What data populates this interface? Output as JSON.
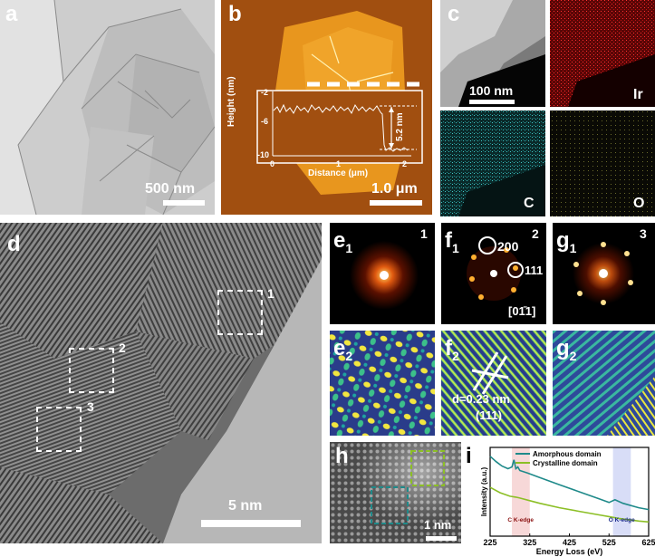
{
  "panels": {
    "a": {
      "label": "a",
      "scalebar": "500 nm"
    },
    "b": {
      "label": "b",
      "scalebar": "1.0 μm",
      "inset": {
        "xlabel": "Distance (μm)",
        "ylabel": "Height (nm)",
        "yticks": [
          "-2",
          "-6",
          "-10"
        ],
        "xticks": [
          "0",
          "1",
          "2"
        ],
        "annotation": "5.2 nm"
      }
    },
    "c": {
      "label": "c",
      "scalebar": "100 nm",
      "maps": [
        "Ir",
        "C",
        "O"
      ]
    },
    "d": {
      "label": "d",
      "scalebar": "5 nm",
      "regions": [
        "1",
        "2",
        "3"
      ]
    },
    "e1": {
      "label": "e",
      "sub": "1",
      "region": "1"
    },
    "f1": {
      "label": "f",
      "sub": "1",
      "region": "2",
      "spot1": "200",
      "spot2": "111",
      "zone": "[01̄1]"
    },
    "g1": {
      "label": "g",
      "sub": "1",
      "region": "3"
    },
    "e2": {
      "label": "e",
      "sub": "2"
    },
    "f2": {
      "label": "f",
      "sub": "2",
      "spacing": "d=0.23 nm",
      "plane": "(111)"
    },
    "g2": {
      "label": "g",
      "sub": "2"
    },
    "h": {
      "label": "h",
      "scalebar": "1 nm"
    },
    "i": {
      "label": "i"
    }
  },
  "chart_data": {
    "type": "line",
    "xlabel": "Energy Loss (eV)",
    "ylabel": "Intensity (a.u.)",
    "xlim": [
      225,
      625
    ],
    "xticks": [
      225,
      325,
      425,
      525,
      625
    ],
    "legend_position": "top",
    "annotations": [
      "C K-edge",
      "O K-edge"
    ],
    "series": [
      {
        "name": "Amorphous domain",
        "color": "#1f8a8a",
        "x": [
          225,
          240,
          255,
          270,
          280,
          285,
          290,
          295,
          300,
          320,
          350,
          400,
          450,
          500,
          525,
          540,
          560,
          600,
          625
        ],
        "y": [
          0.9,
          0.84,
          0.79,
          0.76,
          0.78,
          0.86,
          0.76,
          0.78,
          0.74,
          0.71,
          0.66,
          0.58,
          0.5,
          0.42,
          0.38,
          0.41,
          0.37,
          0.32,
          0.3
        ]
      },
      {
        "name": "Crystalline domain",
        "color": "#8cbf26",
        "x": [
          225,
          250,
          275,
          290,
          300,
          325,
          350,
          400,
          450,
          500,
          525,
          550,
          600,
          625
        ],
        "y": [
          0.55,
          0.49,
          0.45,
          0.44,
          0.43,
          0.4,
          0.37,
          0.32,
          0.28,
          0.24,
          0.22,
          0.2,
          0.17,
          0.16
        ]
      }
    ]
  },
  "colors": {
    "amorphous": "#1f8a8a",
    "crystalline": "#8cbf26",
    "afm": "#9b4a0c",
    "c_edge_band": "#f4c8c8",
    "o_edge_band": "#c8cff4"
  }
}
